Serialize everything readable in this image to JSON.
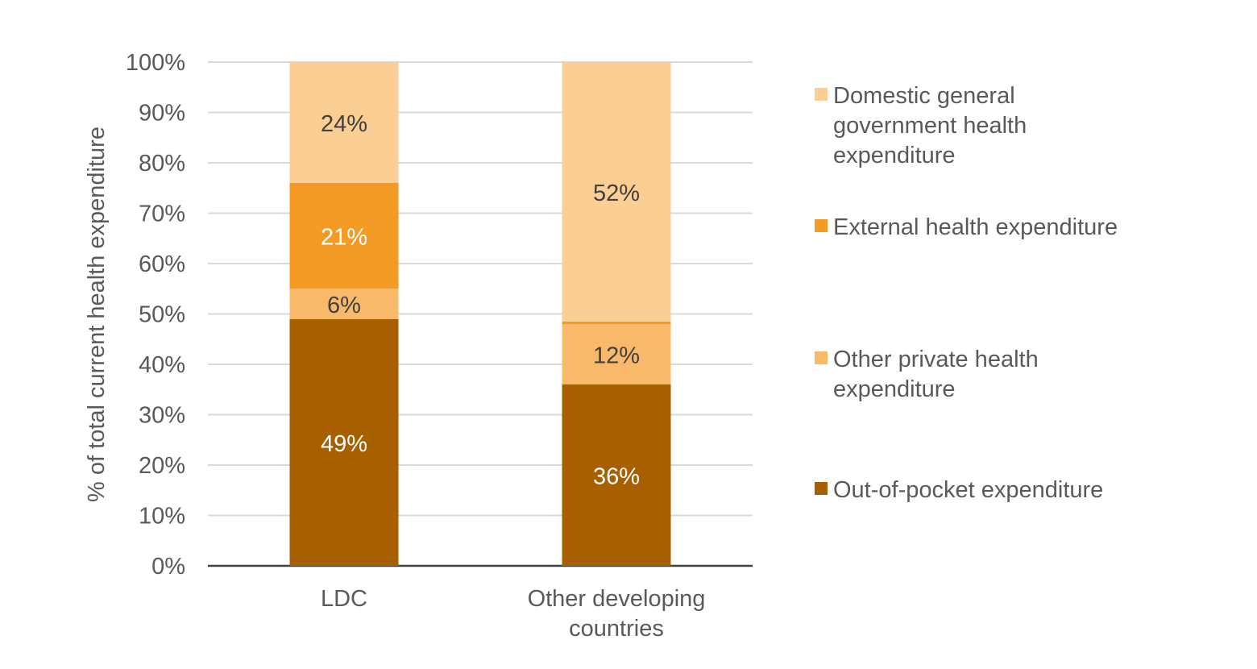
{
  "chart_data": {
    "type": "bar",
    "stacked": true,
    "categories": [
      "LDC",
      "Other developing countries"
    ],
    "category_lines": [
      [
        "LDC"
      ],
      [
        "Other developing",
        "countries"
      ]
    ],
    "series": [
      {
        "name": "Out-of-pocket expenditure",
        "values": [
          49,
          36
        ],
        "labels": [
          "49%",
          "36%"
        ],
        "color": "#A85F00",
        "label_color": "#FFFFFF"
      },
      {
        "name": "Other private health expenditure",
        "values": [
          6,
          12
        ],
        "labels": [
          "6%",
          "12%"
        ],
        "color": "#F8B96A",
        "label_color": "#404040"
      },
      {
        "name": "External health expenditure",
        "values": [
          21,
          0.5
        ],
        "labels": [
          "21%",
          ""
        ],
        "color": "#F39B25",
        "label_color": "#FFFFFF"
      },
      {
        "name": "Domestic general government health expenditure",
        "values": [
          24,
          51.5
        ],
        "labels": [
          "24%",
          "52%"
        ],
        "color": "#FBCE94",
        "label_color": "#404040"
      }
    ],
    "ylabel": "% of total current health expenditure",
    "xlabel": "",
    "ylim": [
      0,
      100
    ],
    "yticks": [
      "0%",
      "10%",
      "20%",
      "30%",
      "40%",
      "50%",
      "60%",
      "70%",
      "80%",
      "90%",
      "100%"
    ],
    "grid": true,
    "legend": {
      "placement": "right",
      "items": [
        {
          "lines": [
            "Domestic general",
            "government health",
            "expenditure"
          ],
          "color": "#FBCE94"
        },
        {
          "lines": [
            "External health expenditure"
          ],
          "color": "#F39B25"
        },
        {
          "lines": [
            "Other private health",
            "expenditure"
          ],
          "color": "#F8B96A"
        },
        {
          "lines": [
            "Out-of-pocket expenditure"
          ],
          "color": "#A85F00"
        }
      ]
    }
  }
}
